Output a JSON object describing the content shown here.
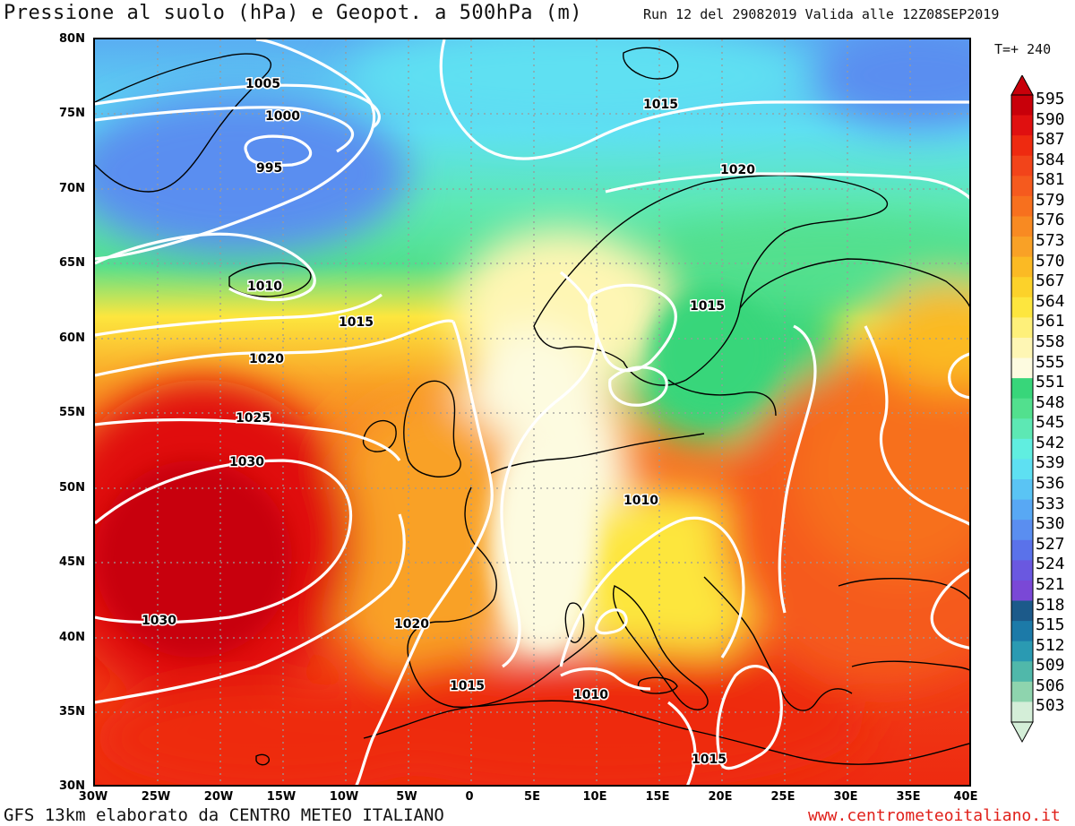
{
  "header": {
    "title": "Pressione al suolo (hPa) e Geopot. a 500hPa (m)",
    "run_info": "Run 12 del 29082019 Valida alle 12Z08SEP2019",
    "forecast_step": "T=+ 240"
  },
  "footer": {
    "credit": "GFS 13km elaborato da CENTRO METEO ITALIANO",
    "website": "www.centrometeoitaliano.it"
  },
  "map": {
    "lat_labels": [
      "80N",
      "75N",
      "70N",
      "65N",
      "60N",
      "55N",
      "50N",
      "45N",
      "40N",
      "35N",
      "30N"
    ],
    "lon_labels": [
      "30W",
      "25W",
      "20W",
      "15W",
      "10W",
      "5W",
      "0",
      "5E",
      "10E",
      "15E",
      "20E",
      "25E",
      "30E",
      "35E",
      "40E"
    ],
    "isobar_labels": [
      "1005",
      "1000",
      "995",
      "1015",
      "1020",
      "1010",
      "1015",
      "1020",
      "1025",
      "1030",
      "1015",
      "1010",
      "1030",
      "1020",
      "1015",
      "1010",
      "1015"
    ]
  },
  "legend": {
    "values": [
      "595",
      "590",
      "587",
      "584",
      "581",
      "579",
      "576",
      "573",
      "570",
      "567",
      "564",
      "561",
      "558",
      "555",
      "551",
      "548",
      "545",
      "542",
      "539",
      "536",
      "533",
      "530",
      "527",
      "524",
      "521",
      "518",
      "515",
      "512",
      "509",
      "506",
      "503"
    ],
    "colors": [
      "#c8000a",
      "#e01010",
      "#ee2a10",
      "#f2441a",
      "#f55a1e",
      "#f7701e",
      "#f88a22",
      "#f9a126",
      "#fbba24",
      "#fcd22a",
      "#fde63e",
      "#fef07a",
      "#fef6b4",
      "#fdfbe0",
      "#38d67a",
      "#52e08e",
      "#5de8b4",
      "#60eee0",
      "#5ee0f2",
      "#5ac4f4",
      "#58a8f4",
      "#5a8ef0",
      "#5a72ea",
      "#6a58e0",
      "#7a48d6",
      "#1c5a8a",
      "#1c7aa8",
      "#2a9ab2",
      "#50b8aa",
      "#8ed4ae",
      "#d4eed8"
    ]
  }
}
